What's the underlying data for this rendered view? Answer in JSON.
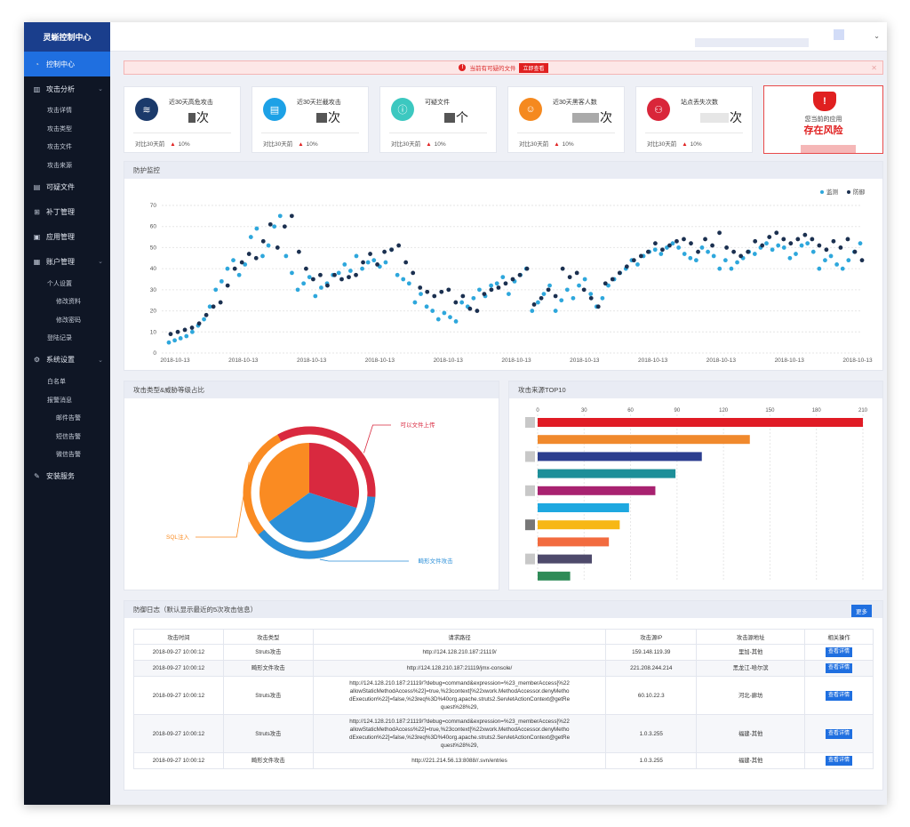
{
  "app": {
    "title": "灵蜥控制中心"
  },
  "sidebar": {
    "items": [
      {
        "label": "控制中心",
        "icon": "dashboard-icon",
        "active": true
      },
      {
        "label": "攻击分析",
        "icon": "bar-chart-icon",
        "expandable": true,
        "children": [
          "攻击详情",
          "攻击类型",
          "攻击文件",
          "攻击来源"
        ]
      },
      {
        "label": "可疑文件",
        "icon": "file-icon"
      },
      {
        "label": "补丁管理",
        "icon": "patch-icon"
      },
      {
        "label": "应用管理",
        "icon": "app-icon"
      },
      {
        "label": "账户管理",
        "icon": "account-icon",
        "expandable": true
      },
      {
        "label": "系统设置",
        "icon": "settings-icon",
        "expandable": true
      },
      {
        "label": "安装服务",
        "icon": "wrench-icon"
      }
    ],
    "account_sub": [
      "个人设置",
      "修改资料",
      "修改密码",
      "登陆记录"
    ],
    "system_sub": [
      "白名单",
      "报警消息",
      "邮件告警",
      "短信告警",
      "微信告警"
    ]
  },
  "alert": {
    "text": "当前有可疑的文件",
    "button": "立即查看"
  },
  "stats": [
    {
      "label": "近30天高危攻击",
      "unit": "次",
      "compare": "对比30天前",
      "change": "10%",
      "color": "#1b3a6b",
      "icon": "layers-icon"
    },
    {
      "label": "近30天拦截攻击",
      "unit": "次",
      "compare": "对比30天前",
      "change": "10%",
      "color": "#1da1e6",
      "icon": "document-check-icon"
    },
    {
      "label": "可疑文件",
      "unit": "个",
      "compare": "对比30天前",
      "change": "10%",
      "color": "#3cc8c0",
      "icon": "info-icon"
    },
    {
      "label": "近30天黑客人数",
      "unit": "次",
      "compare": "对比30天前",
      "change": "10%",
      "color": "#f5891f",
      "icon": "users-icon"
    },
    {
      "label": "站点丢失次数",
      "unit": "次",
      "compare": "对比30天前",
      "change": "10%",
      "color": "#d9263a",
      "icon": "network-icon"
    }
  ],
  "risk": {
    "line1": "您当前的应用",
    "line2": "存在风险"
  },
  "monitor": {
    "title": "防护监控",
    "legend": [
      "监测",
      "防御"
    ],
    "colors": [
      "#2ea7dc",
      "#1b3050"
    ]
  },
  "scatter": {
    "type": "scatter",
    "ylim": [
      0,
      70
    ],
    "yticks": [
      0,
      10,
      20,
      30,
      40,
      50,
      60,
      70
    ],
    "xticks": [
      "2018-10-13",
      "2018-10-13",
      "2018-10-13",
      "2018-10-13",
      "2018-10-13",
      "2018-10-13",
      "2018-10-13",
      "2018-10-13",
      "2018-10-13",
      "2018-10-13",
      "2018-10-13"
    ],
    "series": [
      {
        "name": "监测",
        "values": [
          5,
          6,
          7,
          8,
          10,
          13,
          16,
          22,
          30,
          34,
          40,
          44,
          37,
          42,
          55,
          59,
          46,
          51,
          60,
          65,
          46,
          38,
          30,
          33,
          36,
          27,
          31,
          33,
          37,
          38,
          42,
          39,
          46,
          40,
          43,
          44,
          41,
          43,
          49,
          37,
          35,
          33,
          24,
          28,
          22,
          20,
          16,
          19,
          17,
          15,
          24,
          22,
          26,
          30,
          27,
          32,
          33,
          36,
          28,
          34,
          37,
          40,
          20,
          24,
          28,
          32,
          20,
          25,
          30,
          26,
          32,
          35,
          28,
          22,
          26,
          32,
          35,
          38,
          40,
          44,
          42,
          46,
          48,
          49,
          47,
          50,
          52,
          50,
          47,
          45,
          44,
          50,
          48,
          46,
          40,
          44,
          40,
          43,
          45,
          48,
          47,
          50,
          52,
          49,
          51,
          50,
          45,
          47,
          51,
          52,
          48,
          40,
          44,
          46,
          42,
          40,
          44,
          48,
          52
        ]
      },
      {
        "name": "防御",
        "values": [
          9,
          10,
          11,
          12,
          14,
          18,
          22,
          24,
          32,
          40,
          43,
          47,
          45,
          53,
          61,
          50,
          60,
          65,
          48,
          40,
          35,
          37,
          32,
          37,
          35,
          36,
          37,
          43,
          47,
          42,
          48,
          49,
          51,
          43,
          38,
          31,
          29,
          27,
          29,
          30,
          24,
          27,
          21,
          20,
          28,
          30,
          31,
          33,
          35,
          37,
          40,
          23,
          26,
          30,
          27,
          40,
          36,
          38,
          30,
          26,
          22,
          33,
          35,
          38,
          41,
          44,
          46,
          48,
          52,
          49,
          51,
          53,
          54,
          52,
          48,
          54,
          51,
          57,
          50,
          48,
          46,
          48,
          53,
          51,
          55,
          57,
          54,
          52,
          54,
          56,
          54,
          51,
          49,
          53,
          50,
          54,
          48,
          44
        ]
      }
    ]
  },
  "pie": {
    "title": "攻击类型&威胁等级占比",
    "labels": [
      "可以文件上传",
      "畸形文件攻击",
      "SQL注入"
    ],
    "values": [
      30,
      35,
      35
    ],
    "colors": [
      "#d9293f",
      "#2b8fd8",
      "#fa8b22"
    ]
  },
  "bars": {
    "title": "攻击来源TOP10",
    "xticks": [
      0,
      30,
      60,
      90,
      120,
      150,
      180,
      210
    ],
    "values": [
      210,
      137,
      106,
      89,
      76,
      59,
      53,
      46,
      35,
      21
    ],
    "colors": [
      "#e01b25",
      "#f0892d",
      "#2c3e8f",
      "#1d8f99",
      "#a82270",
      "#1ea8e0",
      "#f7b715",
      "#f26b3f",
      "#4e4a6b",
      "#2e8b57"
    ]
  },
  "log": {
    "title": "防御日志（默认显示最近的5次攻击信息）",
    "more": "更多",
    "headers": [
      "攻击时间",
      "攻击类型",
      "请求路径",
      "攻击源IP",
      "攻击源地址",
      "相关操作"
    ],
    "rows": [
      {
        "time": "2018-09-27 10:00:12",
        "type": "Struts攻击",
        "path": "http://124.128.210.187:21119/",
        "ip": "159.148.119.39",
        "addr": "里加-其他",
        "action": "查看详情"
      },
      {
        "time": "2018-09-27 10:00:12",
        "type": "畸形文件攻击",
        "path": "http://124.128.210.187:21119/jmx-console/",
        "ip": "221.208.244.214",
        "addr": "黑龙江-哈尔滨",
        "action": "查看详情"
      },
      {
        "time": "2018-09-27 10:00:12",
        "type": "Struts攻击",
        "path": "http://124.128.210.187:21119/?debug=command&expression=%23_memberAccess[%22allowStaticMethodAccess%22]=true,%23context[%22xwork.MethodAccessor.denyMethodExecution%22]=false,%23req%3D%40org.apache.struts2.ServletActionContext@getRequest%28%29,",
        "ip": "60.10.22.3",
        "addr": "河北-廊坊",
        "action": "查看详情"
      },
      {
        "time": "2018-09-27 10:00:12",
        "type": "Struts攻击",
        "path": "http://124.128.210.187:21119/?debug=command&expression=%23_memberAccess[%22allowStaticMethodAccess%22]=true,%23context[%22xwork.MethodAccessor.denyMethodExecution%22]=false,%23req%3D%40org.apache.struts2.ServletActionContext@getRequest%28%29,",
        "ip": "1.0.3.255",
        "addr": "福建-其他",
        "action": "查看详情"
      },
      {
        "time": "2018-09-27 10:00:12",
        "type": "畸形文件攻击",
        "path": "http://221.214.56.13:8088//.svn/entries",
        "ip": "1.0.3.255",
        "addr": "福建-其他",
        "action": "查看详情"
      }
    ]
  }
}
